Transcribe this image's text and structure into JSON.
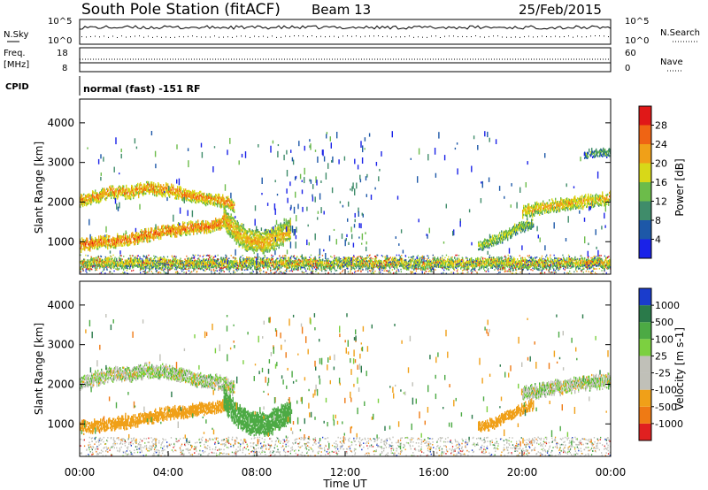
{
  "header": {
    "title": "South Pole Station (fitACF)",
    "beam": "Beam 13",
    "date": "25/Feb/2015"
  },
  "summary_panels": {
    "nsky_label": "N.Sky",
    "nsearch_label": "N.Search",
    "freq_label": "Freq.",
    "freq_unit": "[MHz]",
    "nave_label": "Nave",
    "cpid_label": "CPID",
    "cpid_text": "normal (fast) -151 RF",
    "left_ticks_noise": [
      "10^5",
      "10^0"
    ],
    "right_ticks_noise": [
      "10^5",
      "10^0"
    ],
    "left_ticks_freq": [
      "18",
      "8"
    ],
    "right_ticks_nave": [
      "60",
      "0"
    ]
  },
  "chart_data": [
    {
      "type": "heatmap",
      "title": "",
      "xlabel": "",
      "ylabel": "Slant Range [km]",
      "xlim_hours": [
        0,
        24
      ],
      "ylim": [
        180,
        4600
      ],
      "x_tick_labels": [
        "00:00",
        "04:00",
        "08:00",
        "12:00",
        "16:00",
        "20:00",
        "00:00"
      ],
      "y_tick_labels": [
        "1000",
        "2000",
        "3000",
        "4000"
      ],
      "y_ticks": [
        1000,
        2000,
        3000,
        4000
      ],
      "colorbar": {
        "label": "Power [dB]",
        "ticks": [
          "4",
          "8",
          "12",
          "16",
          "20",
          "24",
          "28"
        ],
        "colors": [
          "#1a22e8",
          "#1d58a8",
          "#3f8c6a",
          "#6cbc4a",
          "#d8d818",
          "#f0a018",
          "#ef6414",
          "#e01818"
        ]
      },
      "bands": [
        {
          "x0": 0.0,
          "x1": 7.0,
          "center": [
            2050,
            2150,
            2250,
            2250,
            2350,
            2300,
            2200,
            2100,
            2050,
            1900
          ],
          "width": 260,
          "level": 16
        },
        {
          "x0": 0.0,
          "x1": 6.8,
          "center": [
            900,
            950,
            1000,
            1050,
            1150,
            1250,
            1300,
            1350,
            1400,
            1500
          ],
          "width": 240,
          "level": 18
        },
        {
          "x0": 6.5,
          "x1": 9.5,
          "center": [
            1600,
            1200,
            1000,
            950,
            1100,
            1300
          ],
          "width": 500,
          "level": 14
        },
        {
          "x0": 0.0,
          "x1": 24.0,
          "center": [
            450
          ],
          "width": 220,
          "level": 12
        },
        {
          "x0": 18.0,
          "x1": 20.5,
          "center": [
            900,
            1050,
            1300,
            1500
          ],
          "width": 220,
          "level": 10
        },
        {
          "x0": 20.0,
          "x1": 24.0,
          "center": [
            1750,
            1900,
            2000,
            2100
          ],
          "width": 260,
          "level": 14
        },
        {
          "x0": 22.8,
          "x1": 24.0,
          "center": [
            3200,
            3250
          ],
          "width": 160,
          "level": 6
        }
      ]
    },
    {
      "type": "heatmap",
      "title": "",
      "xlabel": "Time UT",
      "ylabel": "Slant Range [km]",
      "xlim_hours": [
        0,
        24
      ],
      "ylim": [
        180,
        4600
      ],
      "x_tick_labels": [
        "00:00",
        "04:00",
        "08:00",
        "12:00",
        "16:00",
        "20:00",
        "00:00"
      ],
      "y_tick_labels": [
        "1000",
        "2000",
        "3000",
        "4000"
      ],
      "y_ticks": [
        1000,
        2000,
        3000,
        4000
      ],
      "colorbar": {
        "label": "Velocity [m s-1]",
        "ticks": [
          "1000",
          "500",
          "100",
          "25",
          "-25",
          "-100",
          "-500",
          "-1000"
        ],
        "colors": [
          "#1a3ccc",
          "#2a7a4a",
          "#4caa44",
          "#7cd040",
          "#c0c0b8",
          "#c0c0b8",
          "#f0a018",
          "#ef7a14",
          "#e02020"
        ]
      },
      "bands": [
        {
          "x0": 0.0,
          "x1": 7.0,
          "center": [
            2050,
            2150,
            2250,
            2250,
            2350,
            2300,
            2200,
            2100,
            2050,
            1900
          ],
          "width": 300,
          "level": 0
        },
        {
          "x0": 0.0,
          "x1": 6.8,
          "center": [
            900,
            950,
            1000,
            1050,
            1150,
            1250,
            1300,
            1350,
            1400,
            1500
          ],
          "width": 260,
          "level": -300
        },
        {
          "x0": 6.5,
          "x1": 9.5,
          "center": [
            1600,
            1200,
            1000,
            950,
            1100,
            1300
          ],
          "width": 500,
          "level": 300
        },
        {
          "x0": 18.0,
          "x1": 20.5,
          "center": [
            900,
            1050,
            1300,
            1500
          ],
          "width": 220,
          "level": -300
        },
        {
          "x0": 20.0,
          "x1": 24.0,
          "center": [
            1750,
            1900,
            2000,
            2100
          ],
          "width": 300,
          "level": 0
        }
      ]
    }
  ]
}
